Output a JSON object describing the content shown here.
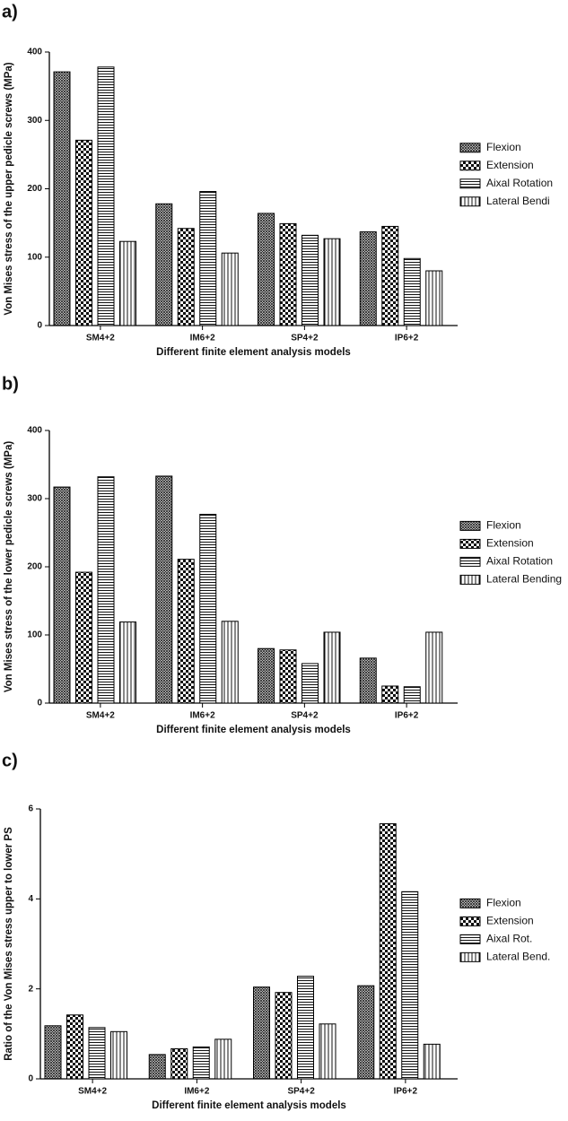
{
  "chart_data": [
    {
      "type": "bar",
      "panel": "a)",
      "xlabel": "Different finite element analysis models",
      "ylabel": "Von Mises stress of the upper pedicle screws (MPa)",
      "categories": [
        "SM4+2",
        "IM6+2",
        "SP4+2",
        "IP6+2"
      ],
      "series": [
        {
          "name": "Flexion",
          "color": "#000000",
          "values": [
            371,
            178,
            164,
            137
          ]
        },
        {
          "name": "Extension",
          "color": "#000000",
          "values": [
            271,
            142,
            149,
            145
          ]
        },
        {
          "name": "Aixal Rotation",
          "color": "#000000",
          "values": [
            378,
            196,
            132,
            98
          ]
        },
        {
          "name": "Lateral Bendi",
          "color": "#000000",
          "values": [
            123,
            106,
            127,
            80
          ]
        }
      ],
      "ylim": [
        0,
        400
      ],
      "yticks": [
        0,
        100,
        200,
        300,
        400
      ]
    },
    {
      "type": "bar",
      "panel": "b)",
      "xlabel": "Different finite element analysis models",
      "ylabel": "Von Mises stress of the lower pedicle screws (MPa)",
      "categories": [
        "SM4+2",
        "IM6+2",
        "SP4+2",
        "IP6+2"
      ],
      "series": [
        {
          "name": "Flexion",
          "color": "#000000",
          "values": [
            317,
            333,
            80,
            66
          ]
        },
        {
          "name": "Extension",
          "color": "#000000",
          "values": [
            192,
            211,
            78,
            25
          ]
        },
        {
          "name": "Aixal Rotation",
          "color": "#000000",
          "values": [
            332,
            277,
            58,
            24
          ]
        },
        {
          "name": "Lateral Bending",
          "color": "#000000",
          "values": [
            119,
            120,
            104,
            104
          ]
        }
      ],
      "ylim": [
        0,
        400
      ],
      "yticks": [
        0,
        100,
        200,
        300,
        400
      ]
    },
    {
      "type": "bar",
      "panel": "c)",
      "xlabel": "Different finite element analysis models",
      "ylabel": "Ratio of the Von Mises stress upper to lower PS",
      "categories": [
        "SM4+2",
        "IM6+2",
        "SP4+2",
        "IP6+2"
      ],
      "series": [
        {
          "name": "Flexion",
          "color": "#000000",
          "values": [
            1.18,
            0.54,
            2.04,
            2.07
          ]
        },
        {
          "name": "Extension",
          "color": "#000000",
          "values": [
            1.42,
            0.67,
            1.92,
            5.67
          ]
        },
        {
          "name": "Aixal Rot.",
          "color": "#000000",
          "values": [
            1.14,
            0.71,
            2.28,
            4.16
          ]
        },
        {
          "name": "Lateral Bend.",
          "color": "#000000",
          "values": [
            1.05,
            0.88,
            1.22,
            0.77
          ]
        }
      ],
      "ylim": [
        0,
        6
      ],
      "yticks": [
        0,
        2,
        4,
        6
      ]
    }
  ]
}
